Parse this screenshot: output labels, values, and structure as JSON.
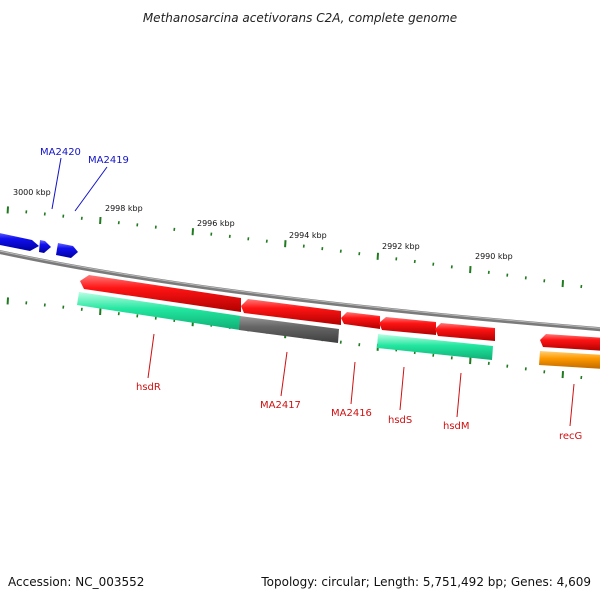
{
  "title": "Methanosarcina acetivorans C2A, complete genome",
  "footer": {
    "accession": "Accession: NC_003552",
    "topology": "Topology: circular; Length: 5,751,492 bp; Genes: 4,609"
  },
  "ticks": [
    {
      "label": "3000 kbp"
    },
    {
      "label": "2998 kbp"
    },
    {
      "label": "2996 kbp"
    },
    {
      "label": "2994 kbp"
    },
    {
      "label": "2992 kbp"
    },
    {
      "label": "2990 kbp"
    }
  ],
  "labels_top": [
    {
      "name": "MA2420"
    },
    {
      "name": "MA2419"
    }
  ],
  "labels_bottom": [
    {
      "name": "hsdR"
    },
    {
      "name": "MA2417"
    },
    {
      "name": "MA2416"
    },
    {
      "name": "hsdS"
    },
    {
      "name": "hsdM"
    },
    {
      "name": "recG"
    }
  ],
  "colors": {
    "forward_gene": "#1a1aee",
    "reverse_gene": "#ee1111",
    "cog_teal": "#22e6a0",
    "cog_gray": "#666666",
    "cog_orange": "#ff9a00",
    "backbone": "#888888",
    "tick": "#1f7a1f"
  }
}
